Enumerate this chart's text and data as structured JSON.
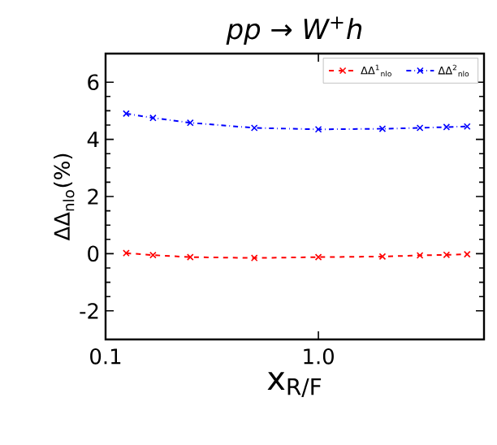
{
  "chart_data": {
    "type": "line",
    "title": "pp → W$^{+}$h",
    "xlabel": "x$_{R/F}$",
    "ylabel": "ΔΔ$_{nlo}$(%)",
    "x": [
      0.125,
      0.167,
      0.25,
      0.5,
      1,
      2,
      3,
      4,
      5
    ],
    "series": [
      {
        "name": "ΔΔ$^{1}$$_{nlo}$",
        "color": "#ff0000",
        "line_style": "dashed",
        "values": [
          0.02,
          -0.05,
          -0.12,
          -0.15,
          -0.12,
          -0.1,
          -0.06,
          -0.04,
          -0.02
        ]
      },
      {
        "name": "ΔΔ$^{2}$$_{nlo}$",
        "color": "#0000ff",
        "line_style": "dashdot",
        "values": [
          4.9,
          4.75,
          4.58,
          4.4,
          4.35,
          4.37,
          4.4,
          4.43,
          4.45
        ]
      }
    ],
    "log": "x",
    "xlim": [
      0.1,
      6
    ],
    "ylim": [
      -3,
      7
    ],
    "xticks": [
      0.1,
      {
        "value": 1,
        "label": "1.0"
      }
    ],
    "yticks": [
      -2,
      0,
      2,
      4,
      6
    ],
    "marker": "cross",
    "legend": "top right",
    "grid": false
  }
}
